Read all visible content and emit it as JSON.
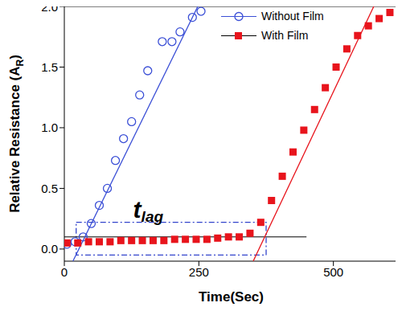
{
  "chart_data": {
    "type": "scatter",
    "xlabel": "Time(Sec)",
    "ylabel": {
      "text": "Relative Resistance (A",
      "subscript": "R",
      "suffix": ")"
    },
    "xlim": [
      0,
      620
    ],
    "xticks": [
      0,
      250,
      500
    ],
    "ylim": [
      -0.1,
      2.0
    ],
    "yticks": [
      {
        "value": 0,
        "label": "0.0"
      },
      {
        "value": 0.5,
        "label": "0.5"
      },
      {
        "value": 1,
        "label": "1.0"
      },
      {
        "value": 1.5,
        "label": "1.5"
      },
      {
        "value": 2,
        "label": "2.0"
      }
    ],
    "legend": "top",
    "grid": false,
    "series": [
      {
        "name": "Without Film",
        "color": "#3b4fd6",
        "marker": "hollow_circle",
        "x": [
          5,
          20,
          35,
          50,
          65,
          80,
          95,
          110,
          125,
          140,
          155,
          182,
          200,
          215,
          238,
          254
        ],
        "values": [
          0.04,
          0.06,
          0.1,
          0.21,
          0.36,
          0.5,
          0.73,
          0.91,
          1.05,
          1.27,
          1.47,
          1.71,
          1.71,
          1.79,
          1.91,
          1.96
        ],
        "fit": {
          "x": [
            16,
            248
          ],
          "values": [
            -0.1,
            2.0
          ]
        }
      },
      {
        "name": "With Film",
        "color": "#e8141c",
        "marker": "square",
        "x": [
          5,
          25,
          45,
          65,
          85,
          105,
          125,
          145,
          165,
          185,
          205,
          225,
          245,
          265,
          285,
          305,
          325,
          345,
          365,
          385,
          405,
          425,
          445,
          465,
          485,
          505,
          525,
          545,
          565,
          585,
          605
        ],
        "values": [
          0.05,
          0.05,
          0.06,
          0.06,
          0.06,
          0.07,
          0.07,
          0.07,
          0.07,
          0.07,
          0.08,
          0.08,
          0.08,
          0.08,
          0.09,
          0.1,
          0.1,
          0.13,
          0.22,
          0.4,
          0.6,
          0.8,
          0.98,
          1.15,
          1.33,
          1.5,
          1.65,
          1.76,
          1.84,
          1.9,
          1.95
        ],
        "fit": {
          "x": [
            351,
            575
          ],
          "values": [
            -0.1,
            2.0
          ]
        }
      }
    ],
    "threshold": {
      "x": [
        0,
        450
      ],
      "values": [
        0.1,
        0.1
      ]
    },
    "lag_box": {
      "x": [
        22,
        375
      ],
      "values": [
        -0.05,
        0.22
      ]
    },
    "annotations": [
      {
        "text": "t",
        "subscript": "lag"
      }
    ]
  }
}
